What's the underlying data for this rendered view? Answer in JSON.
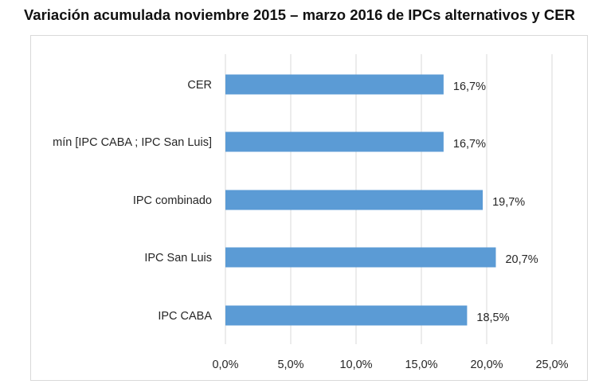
{
  "chart_data": {
    "type": "bar",
    "orientation": "horizontal",
    "title": "Variación acumulada noviembre 2015 – marzo 2016 de IPCs alternativos y CER",
    "categories": [
      "CER",
      "mín [IPC CABA ; IPC San Luis]",
      "IPC combinado",
      "IPC San Luis",
      "IPC CABA"
    ],
    "values": [
      16.7,
      16.7,
      19.7,
      20.7,
      18.5
    ],
    "data_labels": [
      "16,7%",
      "16,7%",
      "19,7%",
      "20,7%",
      "18,5%"
    ],
    "xlim": [
      0,
      25
    ],
    "x_ticks": [
      0,
      5,
      10,
      15,
      20,
      25
    ],
    "x_tick_labels": [
      "0,0%",
      "5,0%",
      "10,0%",
      "15,0%",
      "20,0%",
      "25,0%"
    ],
    "grid": true,
    "legend": "none",
    "colors": {
      "bar": "#5B9BD5",
      "grid": "#d9d9d9",
      "text": "#262626"
    }
  }
}
